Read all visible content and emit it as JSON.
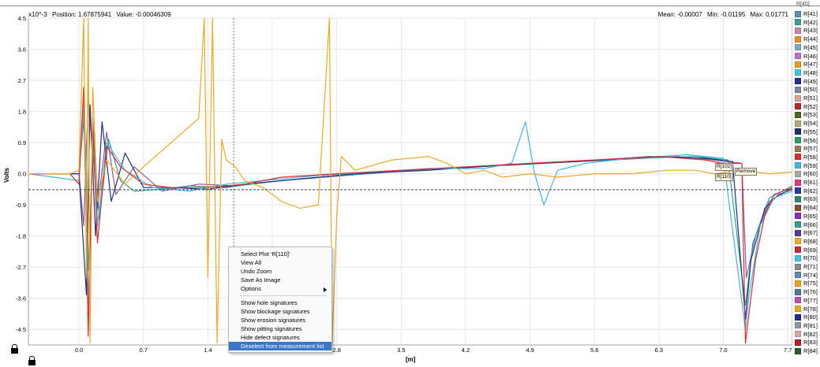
{
  "status": {
    "scale": "x10^-3",
    "position": "Position: 1.67875941",
    "value": "Value: -0.00046309",
    "mean": "Mean: -0.00007",
    "min": "Min: -0.01195",
    "max": "Max: 0.01771"
  },
  "chart_data": {
    "type": "line",
    "ylabel": "Volts",
    "xlabel": "[m]",
    "x_ticks": [
      "0.0",
      "0.7",
      "1.4",
      "2.1",
      "2.8",
      "3.5",
      "4.2",
      "4.9",
      "5.6",
      "6.3",
      "7.0",
      "7.7"
    ],
    "y_ticks": [
      "4.5",
      "3.6",
      "2.7",
      "1.8",
      "0.9",
      "0.0",
      "-0.9",
      "-1.8",
      "-2.7",
      "-3.6",
      "-4.5"
    ],
    "xlim": [
      -0.55,
      7.75
    ],
    "ylim": [
      -4.95,
      4.5
    ],
    "cursor_x": 1.68,
    "threshold_y": -0.46,
    "series": [
      {
        "name": "R[110]",
        "color": "#f0a820",
        "x": [
          -0.55,
          -0.1,
          0.0,
          0.05,
          0.08,
          0.1,
          0.12,
          0.15,
          0.2,
          0.3,
          0.5,
          0.7,
          1.0,
          1.3,
          1.36,
          1.4,
          1.45,
          1.5,
          1.55,
          1.6,
          1.7,
          1.8,
          2.0,
          2.2,
          2.4,
          2.6,
          2.72,
          2.75,
          2.8,
          2.85,
          3.0,
          3.4,
          3.8,
          4.0,
          4.2,
          4.4,
          4.6,
          4.9,
          5.2,
          5.6,
          6.0,
          6.4,
          6.7,
          6.9,
          7.2,
          7.5,
          7.75
        ],
        "y": [
          0.0,
          0.0,
          0.1,
          4.5,
          -3.0,
          4.5,
          -4.9,
          2.5,
          -0.8,
          0.4,
          -0.3,
          0.2,
          0.9,
          1.6,
          4.5,
          -3.0,
          4.5,
          -4.9,
          1.0,
          0.4,
          0.2,
          -0.2,
          -0.4,
          -0.8,
          -1.0,
          -0.9,
          4.5,
          -4.9,
          -1.2,
          0.5,
          0.1,
          0.4,
          0.5,
          0.3,
          0.0,
          0.1,
          -0.1,
          0.0,
          -0.1,
          0.0,
          0.0,
          0.1,
          0.1,
          0.0,
          0.1,
          0.0,
          0.05
        ]
      },
      {
        "name": "R[83]",
        "color": "#e02a2a",
        "x": [
          -0.55,
          -0.1,
          0.0,
          0.05,
          0.1,
          0.15,
          0.2,
          0.3,
          0.45,
          0.7,
          1.0,
          1.4,
          1.8,
          2.2,
          2.8,
          3.5,
          4.2,
          4.9,
          5.6,
          6.3,
          6.8,
          7.0,
          7.2,
          7.24,
          7.28,
          7.35,
          7.45,
          7.55,
          7.65,
          7.75
        ],
        "y": [
          0.0,
          0.0,
          -0.3,
          2.5,
          -4.7,
          1.5,
          -2.0,
          0.8,
          0.2,
          -0.3,
          -0.4,
          -0.4,
          -0.3,
          -0.1,
          0.0,
          0.1,
          0.2,
          0.3,
          0.4,
          0.5,
          0.4,
          0.3,
          0.3,
          -4.9,
          -4.0,
          -2.5,
          -1.2,
          -0.6,
          -0.5,
          -0.4
        ]
      },
      {
        "name": "R[59]",
        "color": "#3fb8e0",
        "x": [
          -0.55,
          0.0,
          0.05,
          0.1,
          0.15,
          0.2,
          0.3,
          0.5,
          0.8,
          1.2,
          1.6,
          2.0,
          2.6,
          3.2,
          3.8,
          4.4,
          4.7,
          4.85,
          4.95,
          5.05,
          5.2,
          5.5,
          6.0,
          6.6,
          7.0,
          7.24,
          7.28,
          7.4,
          7.55,
          7.75
        ],
        "y": [
          0.0,
          -0.2,
          2.0,
          -3.8,
          1.6,
          -1.5,
          0.9,
          0.1,
          -0.4,
          -0.5,
          -0.3,
          -0.2,
          -0.05,
          0.05,
          0.15,
          0.15,
          0.3,
          1.5,
          0.0,
          -0.9,
          0.1,
          0.3,
          0.45,
          0.55,
          0.45,
          -4.5,
          -3.5,
          -1.5,
          -0.7,
          -0.5
        ]
      },
      {
        "name": "R[55]",
        "color": "#1e2f8c",
        "x": [
          -0.55,
          0.0,
          0.08,
          0.12,
          0.18,
          0.25,
          0.35,
          0.5,
          0.7,
          1.0,
          1.4,
          1.8,
          2.4,
          3.0,
          3.8,
          4.6,
          5.4,
          6.2,
          6.8,
          7.1,
          7.24,
          7.3,
          7.45,
          7.6,
          7.75
        ],
        "y": [
          0.0,
          0.0,
          -3.5,
          2.0,
          -1.8,
          1.5,
          -0.8,
          0.6,
          -0.4,
          -0.4,
          -0.45,
          -0.3,
          -0.15,
          0.0,
          0.1,
          0.25,
          0.35,
          0.5,
          0.45,
          0.35,
          -4.2,
          -2.5,
          -1.0,
          -0.6,
          -0.45
        ]
      },
      {
        "name": "R[66]",
        "color": "#2aa38a",
        "x": [
          -0.55,
          0.0,
          0.06,
          0.1,
          0.16,
          0.22,
          0.32,
          0.45,
          0.6,
          0.9,
          1.2,
          1.6,
          2.0,
          2.6,
          3.3,
          4.0,
          4.7,
          5.4,
          6.1,
          6.7,
          7.05,
          7.24,
          7.32,
          7.5,
          7.75
        ],
        "y": [
          0.0,
          0.0,
          1.8,
          -2.8,
          1.2,
          -1.3,
          1.0,
          -0.2,
          -0.5,
          -0.45,
          -0.35,
          -0.4,
          -0.25,
          -0.1,
          0.05,
          0.15,
          0.25,
          0.35,
          0.45,
          0.5,
          0.4,
          -3.8,
          -2.0,
          -0.7,
          -0.35
        ]
      },
      {
        "name": "R[74]",
        "color": "#8a5aa8",
        "x": [
          -0.55,
          0.0,
          0.05,
          0.1,
          0.2,
          0.3,
          0.4,
          0.6,
          0.9,
          1.3,
          1.7,
          2.2,
          2.9,
          3.6,
          4.3,
          5.0,
          5.8,
          6.5,
          6.9,
          7.2,
          7.25,
          7.35,
          7.5,
          7.75
        ],
        "y": [
          0.0,
          0.0,
          -1.5,
          2.2,
          -1.0,
          1.2,
          -0.6,
          0.2,
          -0.5,
          -0.3,
          -0.35,
          -0.2,
          -0.05,
          0.1,
          0.2,
          0.3,
          0.4,
          0.5,
          0.4,
          0.3,
          -3.0,
          -1.8,
          -0.8,
          -0.4
        ]
      }
    ]
  },
  "legend": {
    "top_cut": "R[40]",
    "items": [
      {
        "label": "R[41]",
        "color": "#5a8fb0"
      },
      {
        "label": "R[42]",
        "color": "#3a9c9c"
      },
      {
        "label": "R[43]",
        "color": "#c88aa0"
      },
      {
        "label": "R[44]",
        "color": "#f08c1e"
      },
      {
        "label": "R[45]",
        "color": "#7aaac8"
      },
      {
        "label": "R[46]",
        "color": "#c070c8"
      },
      {
        "label": "R[47]",
        "color": "#e8a020"
      },
      {
        "label": "R[48]",
        "color": "#3fc8d8"
      },
      {
        "label": "R[49]",
        "color": "#1e2f9c"
      },
      {
        "label": "R[50]",
        "color": "#7a8a98"
      },
      {
        "label": "R[51]",
        "color": "#d8a898"
      },
      {
        "label": "R[52]",
        "color": "#b82828"
      },
      {
        "label": "R[53]",
        "color": "#4a6a1e"
      },
      {
        "label": "R[54]",
        "color": "#b8a878"
      },
      {
        "label": "R[55]",
        "color": "#1e2f6c"
      },
      {
        "label": "R[56]",
        "color": "#2aa060"
      },
      {
        "label": "R[57]",
        "color": "#9a7a5a"
      },
      {
        "label": "R[58]",
        "color": "#e02a2a"
      },
      {
        "label": "R[59]",
        "color": "#3fb8e0"
      },
      {
        "label": "R[60]",
        "color": "#a8a8a0"
      },
      {
        "label": "R[61]",
        "color": "#e83a7a"
      },
      {
        "label": "R[62]",
        "color": "#2a3aa8"
      },
      {
        "label": "R[63]",
        "color": "#2a8c6a"
      },
      {
        "label": "R[64]",
        "color": "#8c4a2a"
      },
      {
        "label": "R[65]",
        "color": "#8a2ac8"
      },
      {
        "label": "R[66]",
        "color": "#2aa38a"
      },
      {
        "label": "R[67]",
        "color": "#5a3a8c"
      },
      {
        "label": "R[68]",
        "color": "#e8b020"
      },
      {
        "label": "R[69]",
        "color": "#c82a3a"
      },
      {
        "label": "R[70]",
        "color": "#3ac8e8"
      },
      {
        "label": "R[71]",
        "color": "#8a8a8a"
      },
      {
        "label": "R[74]",
        "color": "#5a8ab8"
      },
      {
        "label": "R[75]",
        "color": "#f0a020"
      },
      {
        "label": "R[76]",
        "color": "#4a7a9a"
      },
      {
        "label": "R[77]",
        "color": "#c84ab8"
      },
      {
        "label": "R[78]",
        "color": "#e8a818"
      },
      {
        "label": "R[80]",
        "color": "#1e2a8c"
      },
      {
        "label": "R[81]",
        "color": "#8a9aa8"
      },
      {
        "label": "R[82]",
        "color": "#d8a8a0"
      },
      {
        "label": "R[83]",
        "color": "#b82020"
      },
      {
        "label": "R[84]",
        "color": "#2a5a1e"
      }
    ]
  },
  "tags": {
    "a": "R[102]",
    "b": "R[110]",
    "c": "Remove"
  },
  "context_menu": {
    "items": [
      {
        "label": "Select Plot 'R[110]'",
        "active": false
      },
      {
        "label": "View All",
        "active": false
      },
      {
        "label": "Undo Zoom",
        "active": false
      },
      {
        "label": "Save As Image",
        "active": false
      },
      {
        "label": "Options",
        "active": false,
        "submenu": true
      },
      {
        "label": "Show hole signatures",
        "active": false,
        "sep_before": true
      },
      {
        "label": "Show blockage signatures",
        "active": false
      },
      {
        "label": "Show erosion signatures",
        "active": false
      },
      {
        "label": "Show pitting signatures",
        "active": false
      },
      {
        "label": "Hide defect signatures",
        "active": false
      },
      {
        "label": "Deselect from measurement list",
        "active": true
      }
    ]
  },
  "colors": {
    "cursor": "#707070",
    "threshold": "#404040",
    "menu_highlight": "#3a78c7",
    "grid": "#e6e6e6"
  }
}
